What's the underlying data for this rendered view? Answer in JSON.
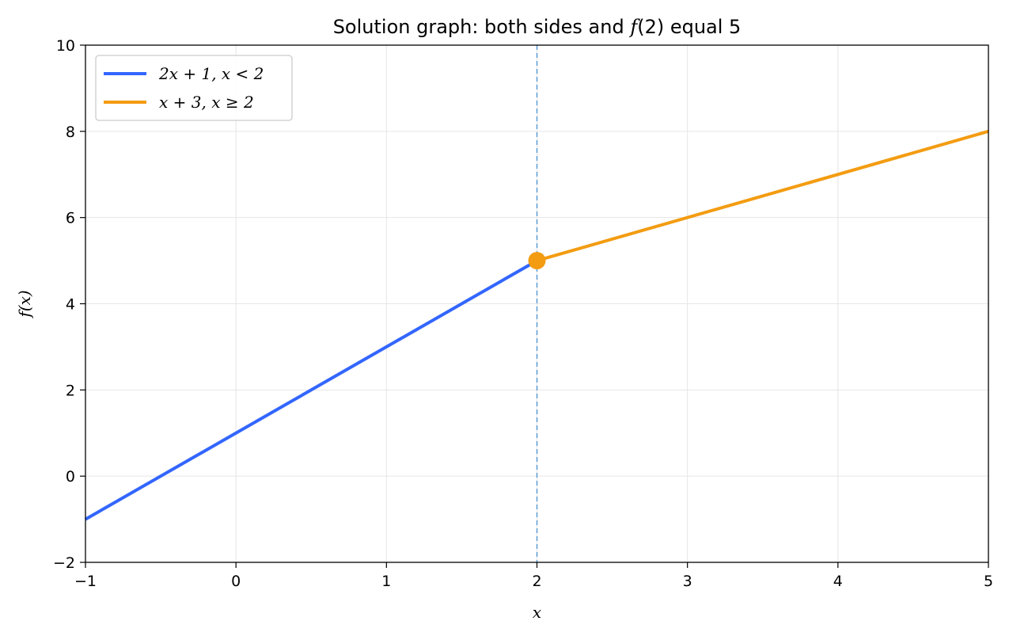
{
  "chart_data": {
    "type": "line",
    "title": "Solution graph: both sides and f(2) equal 5",
    "xlabel": "x",
    "ylabel": "f(x)",
    "xlim": [
      -1,
      5
    ],
    "ylim": [
      -2,
      10
    ],
    "xticks": [
      -1,
      0,
      1,
      2,
      3,
      4,
      5
    ],
    "yticks": [
      -2,
      0,
      2,
      4,
      6,
      8,
      10
    ],
    "xtick_labels": [
      "−1",
      "0",
      "1",
      "2",
      "3",
      "4",
      "5"
    ],
    "ytick_labels": [
      "−2",
      "0",
      "2",
      "4",
      "6",
      "8",
      "10"
    ],
    "grid": true,
    "legend_position": "top-left",
    "series": [
      {
        "name": "2x + 1, x < 2",
        "color": "#3366ff",
        "x": [
          -1,
          2
        ],
        "y": [
          -1,
          5
        ]
      },
      {
        "name": "x + 3, x ≥ 2",
        "color": "#f39c12",
        "x": [
          2,
          5
        ],
        "y": [
          5,
          8
        ]
      }
    ],
    "vline": {
      "x": 2,
      "color": "#5b9bd5",
      "style": "dashed"
    },
    "point": {
      "x": 2,
      "y": 5,
      "color": "#f39c12"
    }
  }
}
